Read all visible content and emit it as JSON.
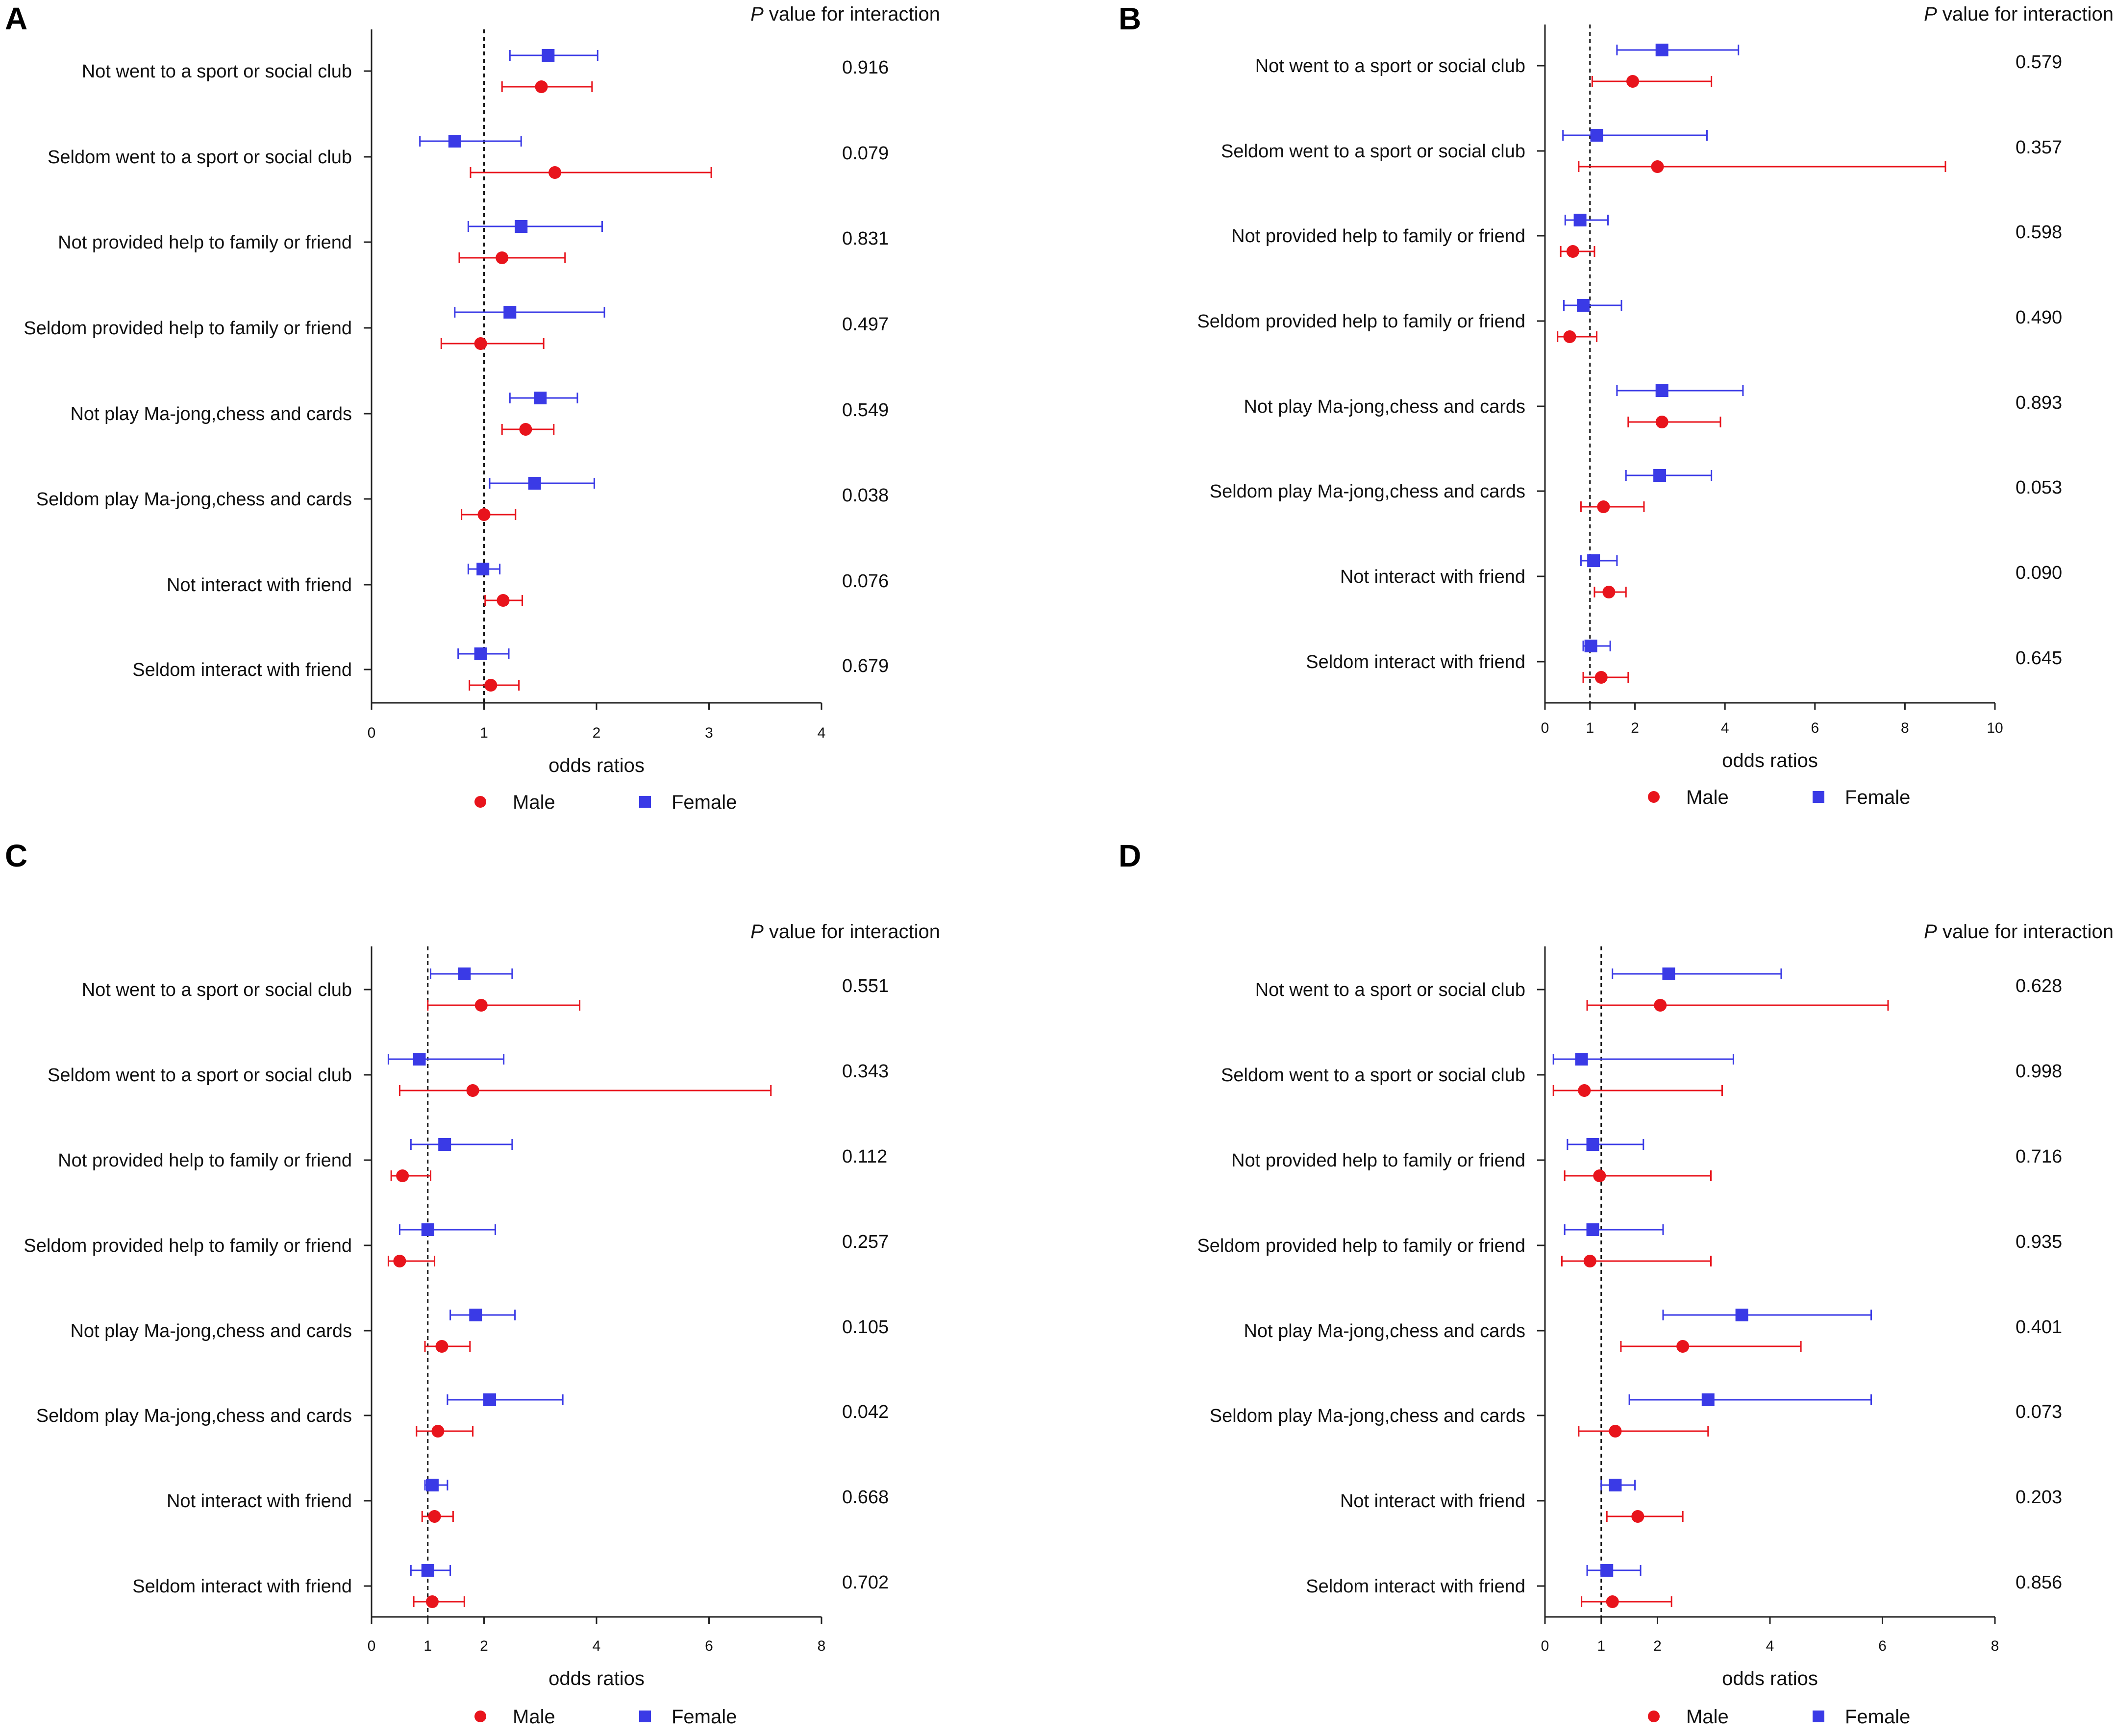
{
  "colors": {
    "male": "#e8141c",
    "female": "#3a3ae6",
    "axis": "#222222"
  },
  "row_labels": [
    "Not went to a sport or social club",
    "Seldom went to a sport or social club",
    "Not provided help to family or friend",
    "Seldom provided help to family or friend",
    "Not play Ma-jong,chess and cards",
    "Seldom play Ma-jong,chess and cards",
    "Not interact with friend",
    "Seldom interact with friend"
  ],
  "p_title_italic": "P",
  "p_title_rest": " value for interaction",
  "xlabel": "odds ratios",
  "legend": {
    "male": "Male",
    "female": "Female"
  },
  "chart_data": [
    {
      "panel": "A",
      "type": "forest",
      "xlabel": "odds ratios",
      "xlim": [
        0,
        4
      ],
      "xticks": [
        0,
        1,
        2,
        3,
        4
      ],
      "reference_line": 1,
      "p_values": [
        "0.916",
        "0.079",
        "0.831",
        "0.497",
        "0.549",
        "0.038",
        "0.076",
        "0.679"
      ],
      "series": [
        {
          "name": "Female",
          "marker": "square",
          "or": [
            1.57,
            0.74,
            1.33,
            1.23,
            1.5,
            1.45,
            0.99,
            0.97
          ],
          "lo": [
            1.23,
            0.43,
            0.86,
            0.74,
            1.23,
            1.05,
            0.86,
            0.77
          ],
          "hi": [
            2.01,
            1.33,
            2.05,
            2.07,
            1.83,
            1.98,
            1.14,
            1.22
          ]
        },
        {
          "name": "Male",
          "marker": "circle",
          "or": [
            1.51,
            1.63,
            1.16,
            0.97,
            1.37,
            1.0,
            1.17,
            1.06
          ],
          "lo": [
            1.16,
            0.88,
            0.78,
            0.62,
            1.16,
            0.8,
            1.01,
            0.87
          ],
          "hi": [
            1.96,
            3.02,
            1.72,
            1.53,
            1.62,
            1.28,
            1.34,
            1.31
          ]
        }
      ]
    },
    {
      "panel": "B",
      "type": "forest",
      "xlabel": "odds ratios",
      "xlim": [
        0,
        10
      ],
      "xticks": [
        0,
        1,
        2,
        4,
        6,
        8,
        10
      ],
      "reference_line": 1,
      "p_values": [
        "0.579",
        "0.357",
        "0.598",
        "0.490",
        "0.893",
        "0.053",
        "0.090",
        "0.645"
      ],
      "series": [
        {
          "name": "Female",
          "marker": "square",
          "or": [
            2.6,
            1.15,
            0.78,
            0.85,
            2.6,
            2.55,
            1.08,
            1.02
          ],
          "lo": [
            1.6,
            0.4,
            0.45,
            0.42,
            1.6,
            1.8,
            0.8,
            0.85
          ],
          "hi": [
            4.3,
            3.6,
            1.4,
            1.7,
            4.4,
            3.7,
            1.6,
            1.45
          ]
        },
        {
          "name": "Male",
          "marker": "circle",
          "or": [
            1.95,
            2.5,
            0.62,
            0.55,
            2.6,
            1.3,
            1.42,
            1.25
          ],
          "lo": [
            1.05,
            0.75,
            0.35,
            0.28,
            1.85,
            0.8,
            1.1,
            0.85
          ],
          "hi": [
            3.7,
            8.9,
            1.1,
            1.15,
            3.9,
            2.2,
            1.8,
            1.85
          ]
        }
      ]
    },
    {
      "panel": "C",
      "type": "forest",
      "xlabel": "odds ratios",
      "xlim": [
        0,
        8
      ],
      "xticks": [
        0,
        1,
        2,
        4,
        6,
        8
      ],
      "reference_line": 1,
      "p_values": [
        "0.551",
        "0.343",
        "0.112",
        "0.257",
        "0.105",
        "0.042",
        "0.668",
        "0.702"
      ],
      "series": [
        {
          "name": "Female",
          "marker": "square",
          "or": [
            1.65,
            0.85,
            1.3,
            1.0,
            1.85,
            2.1,
            1.08,
            1.0
          ],
          "lo": [
            1.05,
            0.3,
            0.7,
            0.5,
            1.4,
            1.35,
            0.95,
            0.7
          ],
          "hi": [
            2.5,
            2.35,
            2.5,
            2.2,
            2.55,
            3.4,
            1.35,
            1.4
          ]
        },
        {
          "name": "Male",
          "marker": "circle",
          "or": [
            1.95,
            1.8,
            0.55,
            0.5,
            1.25,
            1.18,
            1.12,
            1.08
          ],
          "lo": [
            1.0,
            0.5,
            0.35,
            0.3,
            0.95,
            0.8,
            0.9,
            0.75
          ],
          "hi": [
            3.7,
            7.1,
            1.05,
            1.12,
            1.75,
            1.8,
            1.45,
            1.65
          ]
        }
      ]
    },
    {
      "panel": "D",
      "type": "forest",
      "xlabel": "odds ratios",
      "xlim": [
        0,
        8
      ],
      "xticks": [
        0,
        1,
        2,
        4,
        6,
        8
      ],
      "reference_line": 1,
      "p_values": [
        "0.628",
        "0.998",
        "0.716",
        "0.935",
        "0.401",
        "0.073",
        "0.203",
        "0.856"
      ],
      "series": [
        {
          "name": "Female",
          "marker": "square",
          "or": [
            2.2,
            0.65,
            0.85,
            0.85,
            3.5,
            2.9,
            1.25,
            1.1
          ],
          "lo": [
            1.2,
            0.15,
            0.4,
            0.35,
            2.1,
            1.5,
            1.0,
            0.75
          ],
          "hi": [
            4.2,
            3.35,
            1.75,
            2.1,
            5.8,
            5.8,
            1.6,
            1.7
          ]
        },
        {
          "name": "Male",
          "marker": "circle",
          "or": [
            2.05,
            0.7,
            0.97,
            0.8,
            2.45,
            1.25,
            1.65,
            1.2
          ],
          "lo": [
            0.75,
            0.15,
            0.35,
            0.3,
            1.35,
            0.6,
            1.1,
            0.65
          ],
          "hi": [
            6.1,
            3.15,
            2.95,
            2.95,
            4.55,
            2.9,
            2.45,
            2.25
          ]
        }
      ]
    }
  ]
}
